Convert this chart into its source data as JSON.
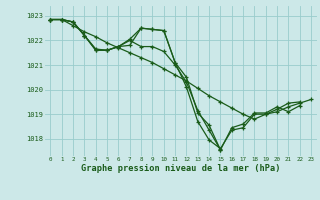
{
  "bg_color": "#cce8e8",
  "grid_color": "#99cccc",
  "line_color": "#1a5c1a",
  "title": "Graphe pression niveau de la mer (hPa)",
  "xlim": [
    -0.5,
    23.5
  ],
  "ylim": [
    1017.3,
    1023.4
  ],
  "yticks": [
    1018,
    1019,
    1020,
    1021,
    1022,
    1023
  ],
  "xticks": [
    0,
    1,
    2,
    3,
    4,
    5,
    6,
    7,
    8,
    9,
    10,
    11,
    12,
    13,
    14,
    15,
    16,
    17,
    18,
    19,
    20,
    21,
    22,
    23
  ],
  "series1_x": [
    0,
    1,
    2,
    3,
    4,
    5,
    6,
    7,
    8,
    9,
    10,
    11,
    12,
    13,
    14,
    15,
    16,
    17,
    18,
    19,
    20,
    21,
    22
  ],
  "series1_y": [
    1022.85,
    1022.85,
    1022.75,
    1022.2,
    1021.65,
    1021.6,
    1021.75,
    1022.05,
    1022.5,
    1022.45,
    1022.4,
    1021.1,
    1020.5,
    1019.05,
    1018.55,
    1017.55,
    1018.45,
    1018.6,
    1019.05,
    1019.05,
    1019.3,
    1019.1,
    1019.35
  ],
  "series2_x": [
    0,
    1,
    2,
    3,
    4,
    5,
    6,
    7,
    8,
    9,
    10,
    11,
    12,
    13,
    14,
    15
  ],
  "series2_y": [
    1022.85,
    1022.85,
    1022.75,
    1022.2,
    1021.6,
    1021.6,
    1021.75,
    1022.0,
    1021.75,
    1021.75,
    1021.55,
    1021.0,
    1020.3,
    1019.15,
    1018.35,
    1017.55
  ],
  "series3_x": [
    0,
    1,
    2,
    3,
    4,
    5,
    6,
    7,
    8,
    9,
    10,
    11,
    12,
    13,
    14,
    15,
    16,
    17,
    18,
    19,
    20,
    21,
    22
  ],
  "series3_y": [
    1022.85,
    1022.85,
    1022.75,
    1022.2,
    1021.6,
    1021.6,
    1021.75,
    1021.8,
    1022.5,
    1022.45,
    1022.4,
    1021.1,
    1020.1,
    1018.7,
    1017.95,
    1017.6,
    1018.35,
    1018.45,
    1019.0,
    1019.0,
    1019.2,
    1019.45,
    1019.5
  ],
  "series4_x": [
    0,
    1,
    2,
    3,
    4,
    5,
    6,
    7,
    8,
    9,
    10,
    11,
    12,
    13,
    14,
    15,
    16,
    17,
    18,
    19,
    20,
    21,
    22,
    23
  ],
  "series4_y": [
    1022.85,
    1022.85,
    1022.6,
    1022.35,
    1022.15,
    1021.9,
    1021.7,
    1021.5,
    1021.3,
    1021.1,
    1020.85,
    1020.6,
    1020.35,
    1020.05,
    1019.75,
    1019.5,
    1019.25,
    1019.0,
    1018.8,
    1019.0,
    1019.1,
    1019.3,
    1019.45,
    1019.6
  ]
}
